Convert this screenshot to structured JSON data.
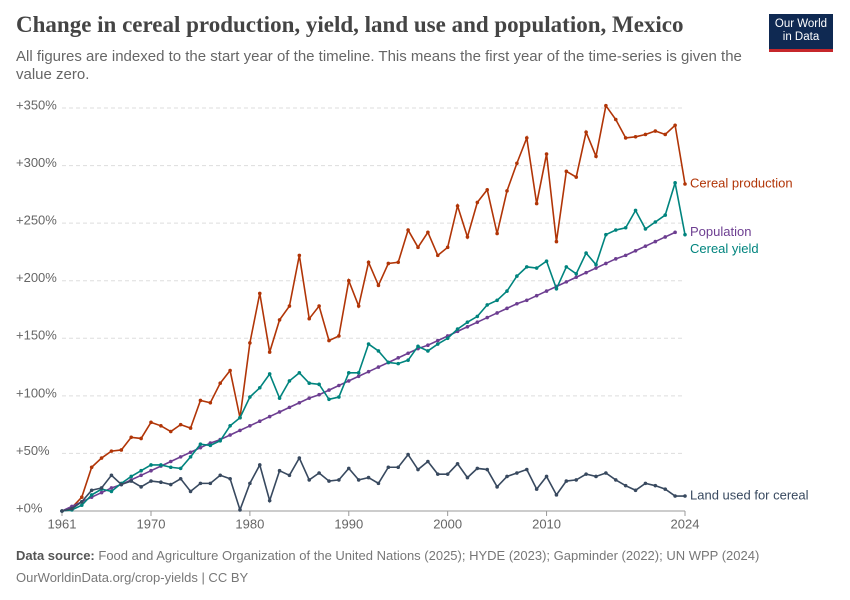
{
  "header": {
    "logo": "Our World in Data"
  },
  "chart_data": {
    "type": "line",
    "title": "Change in cereal production, yield, land use and population, Mexico",
    "subtitle": "All figures are indexed to the start year of the timeline. This means the first year of the time-series is given the value zero.",
    "source_label": "Data source:",
    "source": "Food and Agriculture Organization of the United Nations (2025); HYDE (2023); Gapminder (2022); UN WPP (2024)",
    "footer": "OurWorldinData.org/crop-yields | CC BY",
    "x": [
      1961,
      1962,
      1963,
      1964,
      1965,
      1966,
      1967,
      1968,
      1969,
      1970,
      1971,
      1972,
      1973,
      1974,
      1975,
      1976,
      1977,
      1978,
      1979,
      1980,
      1981,
      1982,
      1983,
      1984,
      1985,
      1986,
      1987,
      1988,
      1989,
      1990,
      1991,
      1992,
      1993,
      1994,
      1995,
      1996,
      1997,
      1998,
      1999,
      2000,
      2001,
      2002,
      2003,
      2004,
      2005,
      2006,
      2007,
      2008,
      2009,
      2010,
      2011,
      2012,
      2013,
      2014,
      2015,
      2016,
      2017,
      2018,
      2019,
      2020,
      2021,
      2022,
      2023,
      2024
    ],
    "xlim": [
      1961,
      2024
    ],
    "xticks": [
      1961,
      1970,
      1980,
      1990,
      2000,
      2010,
      2024
    ],
    "ylim": [
      0,
      350
    ],
    "yticks": [
      {
        "value": 0,
        "label": "+0%"
      },
      {
        "value": 50,
        "label": "+50%"
      },
      {
        "value": 100,
        "label": "+100%"
      },
      {
        "value": 150,
        "label": "+150%"
      },
      {
        "value": 200,
        "label": "+200%"
      },
      {
        "value": 250,
        "label": "+250%"
      },
      {
        "value": 300,
        "label": "+300%"
      },
      {
        "value": 350,
        "label": "+350%"
      }
    ],
    "grid": true,
    "series": [
      {
        "name": "Cereal production",
        "color": "#b13507",
        "values": [
          0,
          3,
          12,
          38,
          46,
          52,
          53,
          64,
          63,
          77,
          74,
          69,
          75,
          72,
          96,
          94,
          111,
          122,
          81,
          146,
          189,
          138,
          166,
          178,
          222,
          167,
          178,
          148,
          152,
          200,
          178,
          216,
          196,
          215,
          216,
          244,
          229,
          242,
          222,
          229,
          265,
          238,
          268,
          279,
          241,
          278,
          302,
          324,
          267,
          310,
          234,
          295,
          290,
          329,
          308,
          352,
          340,
          324,
          325,
          327,
          330,
          327,
          335,
          284
        ]
      },
      {
        "name": "Population",
        "color": "#6d3e91",
        "values": [
          0,
          4,
          8,
          12,
          16,
          20,
          23,
          27,
          31,
          35,
          39,
          43,
          47,
          51,
          55,
          59,
          62,
          66,
          70,
          74,
          78,
          82,
          86,
          90,
          94,
          98,
          101,
          105,
          109,
          113,
          117,
          121,
          125,
          129,
          133,
          137,
          141,
          144,
          148,
          152,
          156,
          160,
          164,
          168,
          172,
          176,
          180,
          183,
          187,
          191,
          195,
          199,
          203,
          207,
          211,
          215,
          219,
          222,
          226,
          230,
          234,
          238,
          242,
          null
        ]
      },
      {
        "name": "Cereal yield",
        "color": "#00847e",
        "values": [
          0,
          1,
          5,
          14,
          19,
          17,
          24,
          30,
          35,
          40,
          40,
          38,
          37,
          47,
          58,
          57,
          61,
          74,
          81,
          99,
          107,
          119,
          98,
          113,
          120,
          111,
          110,
          97,
          99,
          120,
          120,
          145,
          139,
          129,
          128,
          131,
          143,
          139,
          145,
          150,
          158,
          164,
          169,
          179,
          183,
          191,
          204,
          212,
          211,
          217,
          193,
          212,
          206,
          224,
          214,
          240,
          244,
          246,
          261,
          245,
          251,
          257,
          285,
          240
        ]
      },
      {
        "name": "Land used for cereal",
        "color": "#38495f",
        "values": [
          0,
          2,
          8,
          18,
          20,
          31,
          23,
          26,
          21,
          26,
          25,
          23,
          28,
          17,
          24,
          24,
          31,
          28,
          1,
          24,
          40,
          9,
          35,
          31,
          46,
          27,
          33,
          26,
          27,
          37,
          27,
          29,
          24,
          38,
          38,
          49,
          36,
          43,
          32,
          32,
          41,
          29,
          37,
          36,
          21,
          30,
          33,
          36,
          19,
          30,
          14,
          26,
          27,
          32,
          30,
          33,
          27,
          22,
          18,
          24,
          22,
          19,
          13,
          13
        ]
      }
    ]
  }
}
